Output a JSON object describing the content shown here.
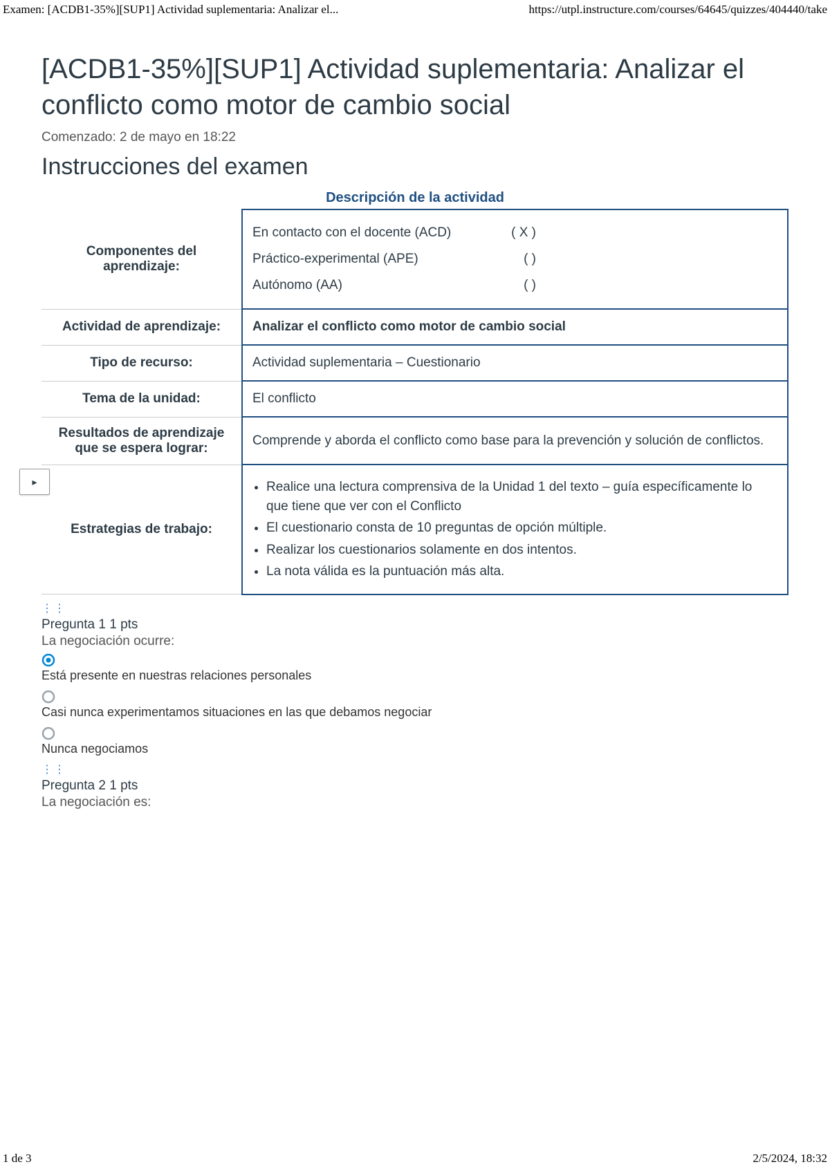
{
  "header": {
    "left": "Examen: [ACDB1-35%][SUP1] Actividad suplementaria: Analizar el...",
    "right": "https://utpl.instructure.com/courses/64645/quizzes/404440/take"
  },
  "title": "[ACDB1-35%][SUP1] Actividad suplementaria: Analizar el conflicto como motor de cambio social",
  "started": "Comenzado: 2 de mayo en 18:22",
  "instructions_heading": "Instrucciones del examen",
  "description_title": "Descripción de la actividad",
  "colors": {
    "table_border": "#1f4f82",
    "desc_title": "#1f4f82",
    "radio_selected": "#0086d6",
    "radio_unselected": "#9aa3ab"
  },
  "table": {
    "rows": [
      {
        "label": "Componentes del aprendizaje:",
        "type": "components",
        "items": [
          {
            "name": "En contacto con el docente (ACD)",
            "mark": "( X )"
          },
          {
            "name": "Práctico-experimental (APE)",
            "mark": "(    )"
          },
          {
            "name": "Autónomo (AA)",
            "mark": "(    )"
          }
        ]
      },
      {
        "label": "Actividad de aprendizaje:",
        "type": "bold",
        "value": "Analizar el conflicto como motor de cambio social"
      },
      {
        "label": "Tipo de recurso:",
        "type": "text",
        "value": "Actividad suplementaria – Cuestionario"
      },
      {
        "label": "Tema de la unidad:",
        "type": "text",
        "value": "El conflicto"
      },
      {
        "label": "Resultados de aprendizaje que se espera lograr:",
        "type": "text",
        "value": "Comprende y aborda el conflicto como base para la prevención y solución de conflictos."
      },
      {
        "label": "Estrategias de trabajo:",
        "type": "list",
        "items": [
          "Realice una lectura comprensiva de la Unidad 1 del texto – guía específicamente lo que tiene que ver con el Conflicto",
          "El cuestionario consta de 10 preguntas de opción múltiple.",
          "Realizar los cuestionarios solamente en dos intentos.",
          "La nota válida es la puntuación más alta."
        ]
      }
    ]
  },
  "questions": [
    {
      "header": "Pregunta 1 1 pts",
      "text": "La negociación ocurre:",
      "answers": [
        {
          "text": "Está presente en nuestras relaciones personales",
          "selected": true
        },
        {
          "text": "Casi nunca experimentamos situaciones en las que debamos negociar",
          "selected": false
        },
        {
          "text": "Nunca negociamos",
          "selected": false
        }
      ]
    },
    {
      "header": "Pregunta 2 1 pts",
      "text": "La negociación es:",
      "answers": []
    }
  ],
  "side_tab_glyph": "▸",
  "footer": {
    "left": "1 de 3",
    "right": "2/5/2024, 18:32"
  }
}
